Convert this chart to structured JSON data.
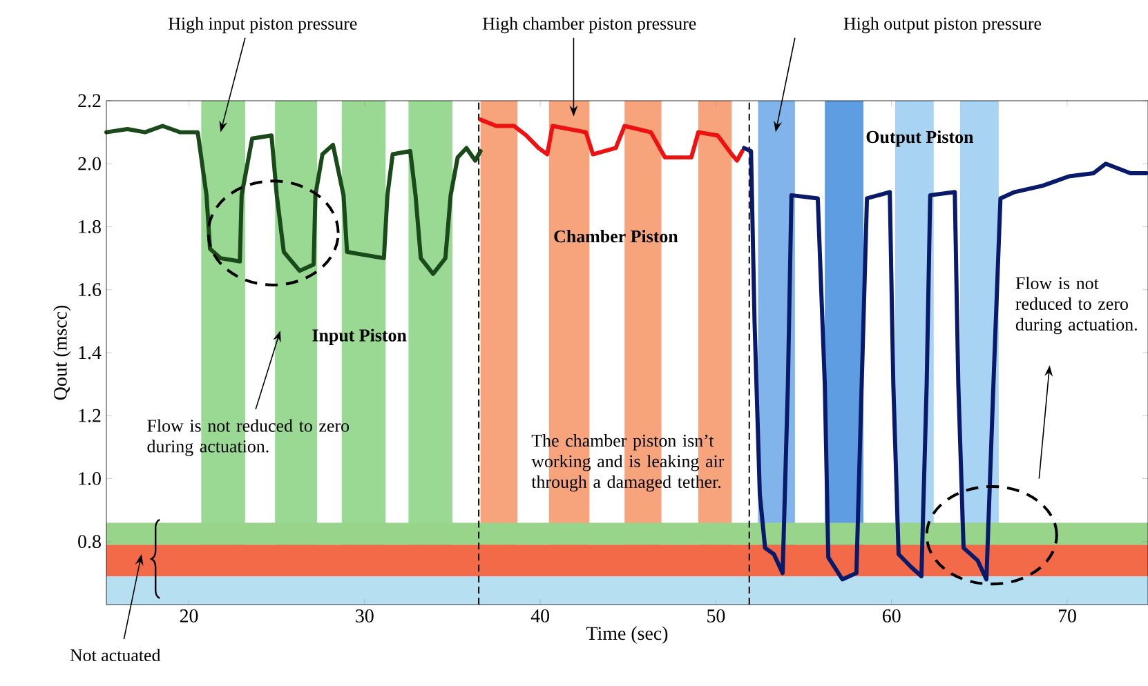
{
  "chart_data": {
    "type": "line",
    "xlabel": "Time (sec)",
    "ylabel": "Qout (mscc)",
    "xlim": [
      15.3,
      74.6
    ],
    "ylim": [
      0.6,
      2.2
    ],
    "xticks": [
      20,
      30,
      40,
      50,
      60,
      70
    ],
    "yticks": [
      {
        "value": 0.8,
        "label": "0.8"
      },
      {
        "value": 1.0,
        "label": "1.0"
      },
      {
        "value": 1.2,
        "label": "1.2"
      },
      {
        "value": 1.4,
        "label": "1.4"
      },
      {
        "value": 1.6,
        "label": "1.6"
      },
      {
        "value": 1.8,
        "label": "1.8"
      },
      {
        "value": 2.0,
        "label": "2.0"
      },
      {
        "value": 2.2,
        "label": "2.2"
      }
    ],
    "series": [
      {
        "color": "#1a4a1a",
        "x": [
          15.3,
          16.5,
          17.5,
          18.5,
          19.5,
          20.5,
          21.0,
          21.2,
          21.8,
          22.9,
          23.0,
          23.6,
          24.7,
          25.0,
          25.4,
          26.3,
          27.1,
          27.2,
          27.6,
          28.2,
          28.8,
          29.0,
          31.1,
          31.3,
          31.6,
          32.6,
          32.9,
          33.2,
          33.9,
          34.6,
          34.9,
          35.3,
          35.8,
          36.3,
          36.6
        ],
        "values": [
          2.1,
          2.11,
          2.1,
          2.12,
          2.1,
          2.1,
          1.9,
          1.73,
          1.7,
          1.69,
          1.9,
          2.08,
          2.09,
          1.9,
          1.72,
          1.66,
          1.68,
          1.9,
          2.03,
          2.06,
          1.9,
          1.72,
          1.7,
          1.9,
          2.03,
          2.04,
          1.9,
          1.7,
          1.65,
          1.7,
          1.9,
          2.02,
          2.05,
          2.01,
          2.04
        ]
      },
      {
        "color": "#ee1111",
        "x": [
          36.6,
          37.5,
          38.5,
          39.2,
          39.9,
          40.4,
          40.7,
          42.6,
          43.0,
          44.3,
          44.8,
          46.3,
          47.1,
          48.6,
          49.0,
          50.1,
          50.9,
          51.2,
          51.5
        ],
        "values": [
          2.14,
          2.12,
          2.12,
          2.09,
          2.05,
          2.03,
          2.12,
          2.1,
          2.03,
          2.05,
          2.12,
          2.1,
          2.02,
          2.02,
          2.1,
          2.09,
          2.03,
          2.01,
          2.04
        ]
      },
      {
        "color": "#0a1a6a",
        "x": [
          51.6,
          52.0,
          52.2,
          52.5,
          52.8,
          53.3,
          53.8,
          54.1,
          54.3,
          55.8,
          56.2,
          56.4,
          57.2,
          58.0,
          58.3,
          58.6,
          59.9,
          60.1,
          60.4,
          61.1,
          61.7,
          62.0,
          62.2,
          63.6,
          63.8,
          64.1,
          64.9,
          65.4,
          65.8,
          66.2,
          67.0,
          68.6,
          70.1,
          71.5,
          72.2,
          73.6,
          74.5
        ],
        "values": [
          2.05,
          2.04,
          1.5,
          0.95,
          0.78,
          0.76,
          0.7,
          1.3,
          1.9,
          1.89,
          1.3,
          0.75,
          0.68,
          0.7,
          1.3,
          1.89,
          1.91,
          1.3,
          0.76,
          0.72,
          0.69,
          1.3,
          1.9,
          1.91,
          1.3,
          0.78,
          0.74,
          0.68,
          1.3,
          1.89,
          1.91,
          1.93,
          1.96,
          1.97,
          2.0,
          1.97,
          1.97
        ]
      }
    ],
    "bands": [
      {
        "axis": "x",
        "from": 20.7,
        "to": 23.2,
        "color": "#9ad994"
      },
      {
        "axis": "x",
        "from": 24.9,
        "to": 27.3,
        "color": "#9ad994"
      },
      {
        "axis": "x",
        "from": 28.7,
        "to": 31.2,
        "color": "#9ad994"
      },
      {
        "axis": "x",
        "from": 32.5,
        "to": 35.0,
        "color": "#9ad994"
      },
      {
        "axis": "x",
        "from": 36.6,
        "to": 38.7,
        "color": "#f7a47c"
      },
      {
        "axis": "x",
        "from": 40.5,
        "to": 42.8,
        "color": "#f7a47c"
      },
      {
        "axis": "x",
        "from": 44.8,
        "to": 46.9,
        "color": "#f7a47c"
      },
      {
        "axis": "x",
        "from": 49.0,
        "to": 50.9,
        "color": "#f7a47c"
      },
      {
        "axis": "x",
        "from": 52.4,
        "to": 54.5,
        "color": "#80b4ea"
      },
      {
        "axis": "x",
        "from": 56.2,
        "to": 58.4,
        "color": "#5e9de2"
      },
      {
        "axis": "x",
        "from": 60.2,
        "to": 62.4,
        "color": "#a9d3f3"
      },
      {
        "axis": "x",
        "from": 63.9,
        "to": 66.1,
        "color": "#a9d3f3"
      },
      {
        "axis": "y",
        "from": 0.6,
        "to": 0.69,
        "color": "#b6dff2"
      },
      {
        "axis": "y",
        "from": 0.69,
        "to": 0.79,
        "color": "#f26a48"
      },
      {
        "axis": "y",
        "from": 0.79,
        "to": 0.86,
        "color": "#98d48a"
      }
    ],
    "ref_lines": [
      {
        "axis": "x",
        "value": 36.5,
        "color": "#000000",
        "line_style": "dashed"
      },
      {
        "axis": "x",
        "value": 51.9,
        "color": "#000000",
        "line_style": "dashed"
      }
    ],
    "annotations": [
      "High input piston pressure",
      "High chamber piston pressure",
      "High output piston pressure",
      "**Input Piston**",
      "**Chamber Piston**",
      "**Output Piston**",
      {
        "text": "Flow is not reduced to zero during actuation.",
        "x": 25.2,
        "y": 1.47
      },
      "The chamber piston isn’t working and is leaking air through a damaged tether.",
      "Flow is not reduced to zero during actuation.",
      "Not actuated"
    ]
  }
}
